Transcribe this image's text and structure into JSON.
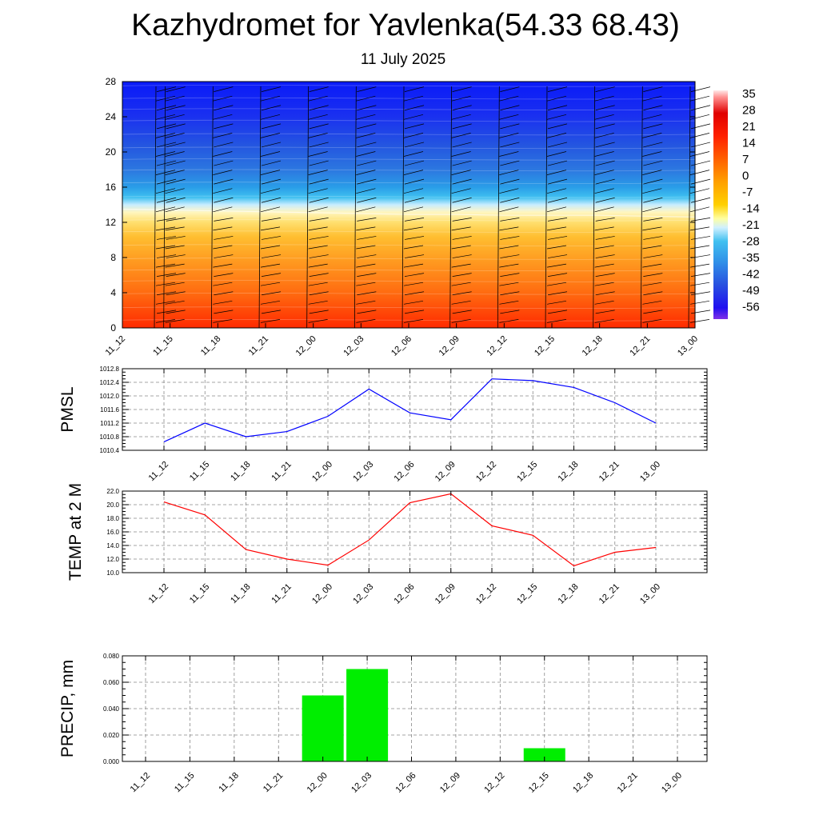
{
  "page": {
    "title": "Kazhydromet for Yavlenka(54.33 68.43)",
    "subtitle": "11 July 2025"
  },
  "chart_data": [
    {
      "type": "heatmap",
      "description_y_ticks": [
        "0",
        "4",
        "8",
        "12",
        "16",
        "20",
        "24",
        "28"
      ],
      "x_categories": [
        "11_12",
        "11_15",
        "11_18",
        "11_21",
        "12_00",
        "12_03",
        "12_06",
        "12_09",
        "12_12",
        "12_15",
        "12_18",
        "12_21",
        "13_00"
      ],
      "ylim": [
        0,
        28
      ],
      "freezing_level": [
        13.5,
        13.4,
        13.3,
        13.2,
        13.1,
        13.0,
        12.9,
        12.9,
        12.8,
        12.8,
        12.8,
        12.7,
        12.6
      ],
      "colorbar": {
        "labels": [
          "35",
          "28",
          "21",
          "14",
          "7",
          "0",
          "-7",
          "-14",
          "-21",
          "-28",
          "-35",
          "-42",
          "-49",
          "-56"
        ]
      },
      "wind_barbs": true
    },
    {
      "type": "line",
      "ylabel": "PMSL",
      "x": [
        "11_12",
        "11_15",
        "11_18",
        "11_21",
        "12_00",
        "12_03",
        "12_06",
        "12_09",
        "12_12",
        "12_15",
        "12_18",
        "12_21",
        "13_00"
      ],
      "values": [
        1010.65,
        1011.2,
        1010.8,
        1010.95,
        1011.4,
        1012.2,
        1011.5,
        1011.3,
        1012.5,
        1012.45,
        1012.25,
        1011.8,
        1011.2
      ],
      "yticks": [
        "1010.4",
        "1010.8",
        "1011.2",
        "1011.6",
        "1012.0",
        "1012.4",
        "1012.8"
      ],
      "ylim": [
        1010.4,
        1012.8
      ],
      "color": "#0000ff",
      "grid": true
    },
    {
      "type": "line",
      "ylabel": "TEMP at 2 M",
      "x": [
        "11_12",
        "11_15",
        "11_18",
        "11_21",
        "12_00",
        "12_03",
        "12_06",
        "12_09",
        "12_12",
        "12_15",
        "12_18",
        "12_21",
        "13_00"
      ],
      "values": [
        20.4,
        18.5,
        13.4,
        12.0,
        11.1,
        14.8,
        20.3,
        21.6,
        16.9,
        15.5,
        11.0,
        13.0,
        13.7
      ],
      "yticks": [
        "10.0",
        "12.0",
        "14.0",
        "16.0",
        "18.0",
        "20.0",
        "22.0"
      ],
      "ylim": [
        10.0,
        22.0
      ],
      "color": "#ff0000",
      "grid": true
    },
    {
      "type": "bar",
      "ylabel": "PRECIP, mm",
      "categories": [
        "11_12",
        "11_15",
        "11_18",
        "11_21",
        "12_00",
        "12_03",
        "12_06",
        "12_09",
        "12_12",
        "12_15",
        "12_18",
        "12_21",
        "13_00"
      ],
      "values": [
        0,
        0,
        0,
        0,
        0.05,
        0.07,
        0,
        0,
        0,
        0.01,
        0,
        0,
        0
      ],
      "yticks": [
        "0.000",
        "0.020",
        "0.040",
        "0.060",
        "0.080"
      ],
      "ylim": [
        0,
        0.08
      ],
      "color": "#00ee00",
      "grid": true
    }
  ]
}
